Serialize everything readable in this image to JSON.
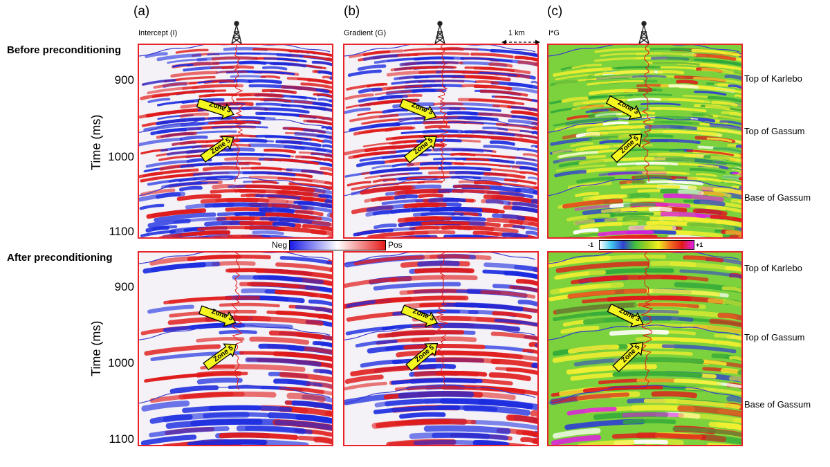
{
  "figure": {
    "column_labels": [
      "(a)",
      "(b)",
      "(c)"
    ],
    "panel_titles": [
      "Intercept (I)",
      "Gradient (G)",
      "I*G"
    ],
    "scale_label": "1 km",
    "row_labels": [
      "Before preconditioning",
      "After preconditioning"
    ],
    "y_axis_label": "Time (ms)",
    "y_ticks": [
      "900",
      "1000",
      "1100"
    ],
    "horizons": [
      "Top of Karlebo",
      "Top of Gassum",
      "Base of Gassum"
    ],
    "zone_labels": [
      "Zone 3",
      "Zone 5"
    ],
    "colorbar_ig": {
      "neg_label": "Neg",
      "pos_label": "Pos",
      "colors": [
        "#1a1ae6",
        "#ffffff",
        "#e61a1a"
      ]
    },
    "colorbar_product": {
      "min_label": "-1",
      "max_label": "+1",
      "colors": [
        "#ffffff",
        "#40c8f0",
        "#3040d0",
        "#40c040",
        "#a0d020",
        "#f0f020",
        "#f07020",
        "#e01a1a",
        "#e020e0"
      ]
    },
    "colors": {
      "panel_border": "#e8232a",
      "horizon_line": "#3a3ad0",
      "well_log": "#e01a1a",
      "arrow_fill": "#f5f520"
    }
  }
}
